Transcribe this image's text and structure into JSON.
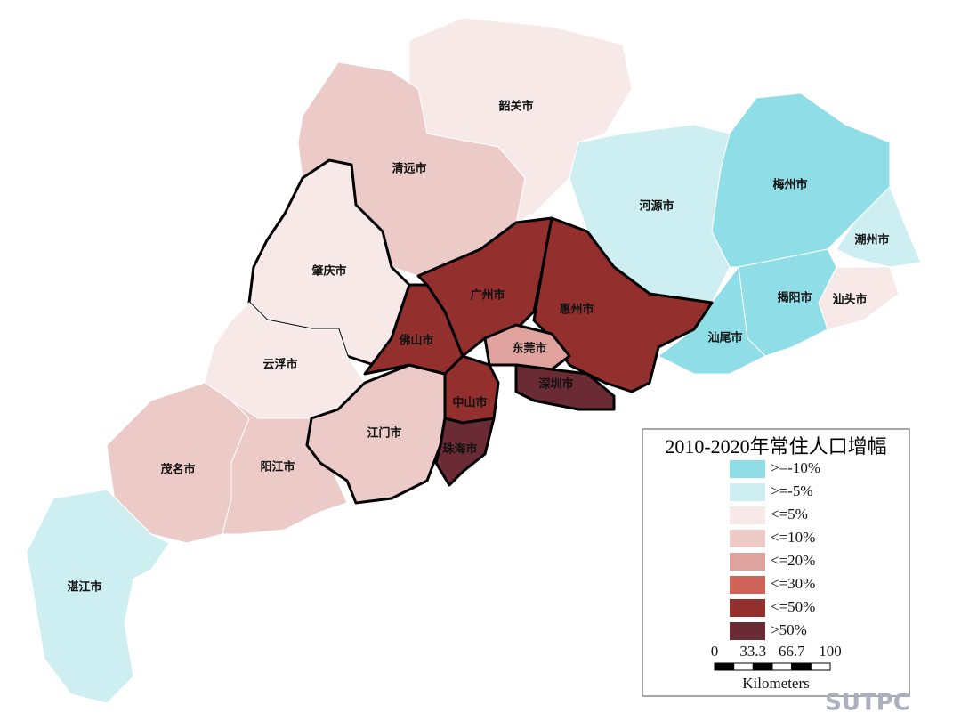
{
  "map": {
    "title": "2010-2020年常住人口增幅",
    "legend": [
      {
        "label": ">=-10%",
        "color": "#8fdde6"
      },
      {
        "label": ">=-5%",
        "color": "#cdeff2"
      },
      {
        "label": "<=5%",
        "color": "#f6e9e8"
      },
      {
        "label": "<=10%",
        "color": "#eccac7"
      },
      {
        "label": "<=20%",
        "color": "#e0a29c"
      },
      {
        "label": "<=30%",
        "color": "#cf6357"
      },
      {
        "label": "<=50%",
        "color": "#93302e"
      },
      {
        "label": ">50%",
        "color": "#6b2b35"
      }
    ],
    "regions": [
      {
        "name": "韶关市",
        "color": "#f6e9e8"
      },
      {
        "name": "清远市",
        "color": "#eccac7"
      },
      {
        "name": "肇庆市",
        "color": "#f6e9e8"
      },
      {
        "name": "云浮市",
        "color": "#f6e9e8"
      },
      {
        "name": "茂名市",
        "color": "#eccac7"
      },
      {
        "name": "阳江市",
        "color": "#eccac7"
      },
      {
        "name": "湛江市",
        "color": "#cdeff2"
      },
      {
        "name": "河源市",
        "color": "#cdeff2"
      },
      {
        "name": "梅州市",
        "color": "#8fdde6"
      },
      {
        "name": "潮州市",
        "color": "#cdeff2"
      },
      {
        "name": "汕头市",
        "color": "#f6e9e8"
      },
      {
        "name": "揭阳市",
        "color": "#8fdde6"
      },
      {
        "name": "汕尾市",
        "color": "#8fdde6"
      },
      {
        "name": "江门市",
        "color": "#eccac7"
      },
      {
        "name": "佛山市",
        "color": "#93302e"
      },
      {
        "name": "广州市",
        "color": "#93302e"
      },
      {
        "name": "惠州市",
        "color": "#93302e"
      },
      {
        "name": "东莞市",
        "color": "#e0a29c"
      },
      {
        "name": "深圳市",
        "color": "#6b2b35"
      },
      {
        "name": "中山市",
        "color": "#93302e"
      },
      {
        "name": "珠海市",
        "color": "#6b2b35"
      }
    ],
    "scale_bar": {
      "ticks": [
        0,
        33.3,
        66.7,
        100
      ],
      "unit": "Kilometers"
    },
    "watermark": "SUTPC"
  }
}
